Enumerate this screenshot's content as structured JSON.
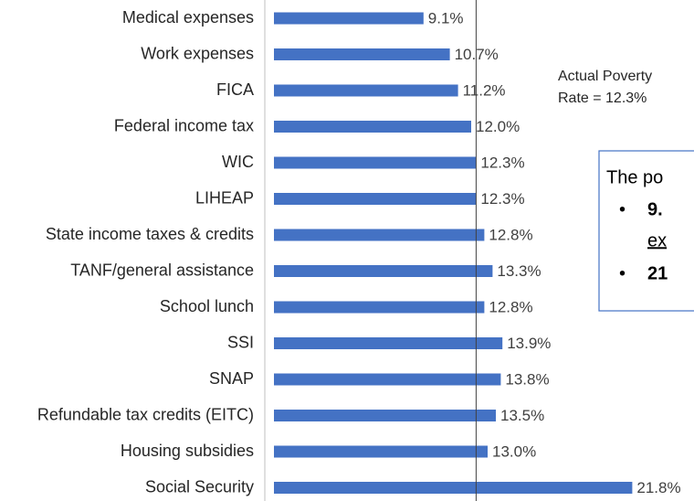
{
  "chart_data": {
    "type": "bar",
    "orientation": "horizontal",
    "categories": [
      "Medical expenses",
      "Work expenses",
      "FICA",
      "Federal income tax",
      "WIC",
      "LIHEAP",
      "State income taxes & credits",
      "TANF/general assistance",
      "School lunch",
      "SSI",
      "SNAP",
      "Refundable tax credits (EITC)",
      "Housing subsidies",
      "Social Security"
    ],
    "values": [
      9.1,
      10.7,
      11.2,
      12.0,
      12.3,
      12.3,
      12.8,
      13.3,
      12.8,
      13.9,
      13.8,
      13.5,
      13.0,
      21.8
    ],
    "value_labels": [
      "9.1%",
      "10.7%",
      "11.2%",
      "12.0%",
      "12.3%",
      "12.3%",
      "12.8%",
      "13.3%",
      "12.8%",
      "13.9%",
      "13.8%",
      "13.5%",
      "13.0%",
      "21.8%"
    ],
    "color": "#4472c4",
    "xlim": [
      0,
      25
    ],
    "reference_line": {
      "value": 12.3,
      "label": [
        "Actual Poverty",
        "Rate = 12.3%"
      ]
    },
    "textbox": {
      "heading": "The po",
      "bullets": [
        {
          "marker": "•",
          "lines": [
            "9.",
            "ex"
          ]
        },
        {
          "marker": "•",
          "lines": [
            "21"
          ]
        }
      ]
    }
  }
}
